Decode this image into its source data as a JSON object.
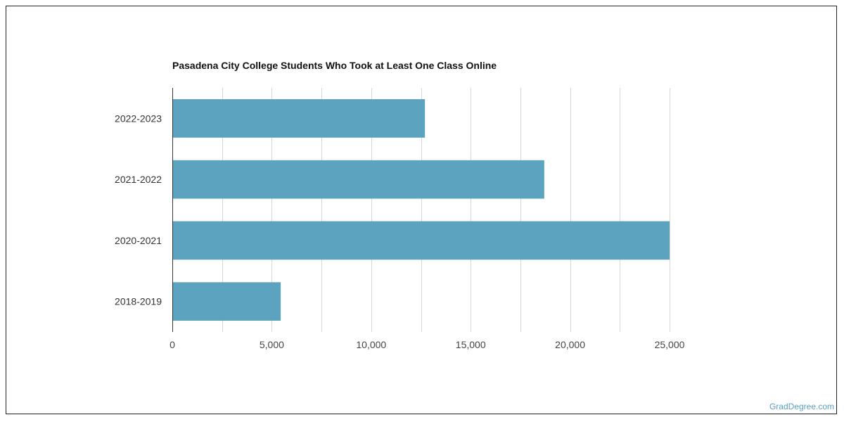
{
  "chart_data": {
    "type": "bar",
    "orientation": "horizontal",
    "title": "Pasadena City College Students Who Took at Least One Class Online",
    "categories": [
      "2022-2023",
      "2021-2022",
      "2020-2021",
      "2018-2019"
    ],
    "values": [
      12700,
      18700,
      25000,
      5450
    ],
    "xlim": [
      0,
      25000
    ],
    "x_ticks": [
      0,
      5000,
      10000,
      15000,
      20000,
      25000
    ],
    "x_tick_labels": [
      "0",
      "5,000",
      "10,000",
      "15,000",
      "20,000",
      "25,000"
    ],
    "xlabel": "",
    "ylabel": "",
    "grid": true,
    "bar_color": "#5ba3bf"
  },
  "branding": {
    "site_label": "GradDegree.com",
    "color": "#5aa0c0"
  }
}
